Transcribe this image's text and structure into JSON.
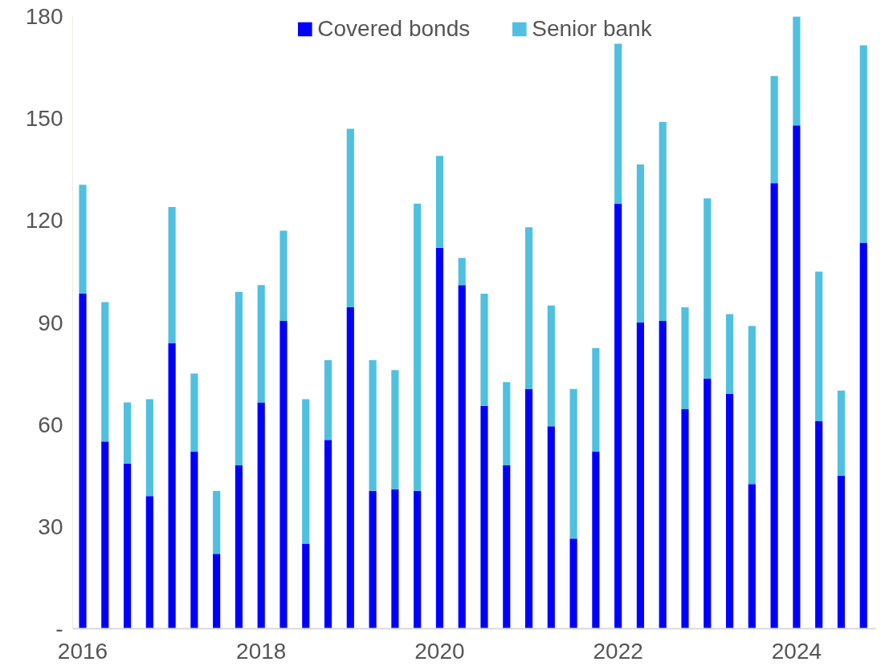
{
  "chart_data": {
    "type": "bar",
    "stacked": true,
    "categories": [
      "2016",
      null,
      null,
      null,
      null,
      null,
      null,
      null,
      "2018",
      null,
      null,
      null,
      null,
      null,
      null,
      null,
      "2020",
      null,
      null,
      null,
      null,
      null,
      null,
      null,
      "2022",
      null,
      null,
      null,
      null,
      null,
      null,
      null,
      "2024",
      null,
      null,
      null
    ],
    "series": [
      {
        "name": "Covered bonds",
        "color": "#0000ff",
        "values": [
          98.5,
          55,
          48.5,
          39,
          84,
          52,
          22,
          48,
          66.5,
          90.5,
          25,
          55.5,
          94.5,
          40.5,
          41,
          40.5,
          112,
          101,
          65.5,
          48,
          70.5,
          59.5,
          26.5,
          52,
          125,
          90,
          90.5,
          64.5,
          73.5,
          69,
          42.5,
          131,
          148,
          61,
          45,
          113.5
        ]
      },
      {
        "name": "Senior bank",
        "color": "#4fc0e0",
        "values": [
          32,
          41,
          18,
          28.5,
          40,
          23,
          18.5,
          51,
          34.5,
          26.5,
          42.5,
          23.5,
          52.5,
          38.5,
          35,
          84.5,
          27,
          8,
          33,
          24.5,
          47.5,
          35.5,
          44,
          30.5,
          47,
          46.5,
          58.5,
          30,
          53,
          23.5,
          46.5,
          31.5,
          32,
          44,
          25,
          58
        ]
      }
    ],
    "ylim": [
      0,
      180
    ],
    "yticks": [
      {
        "value": 0,
        "label": "-"
      },
      30,
      60,
      90,
      120,
      150,
      180
    ],
    "legend": "top"
  }
}
